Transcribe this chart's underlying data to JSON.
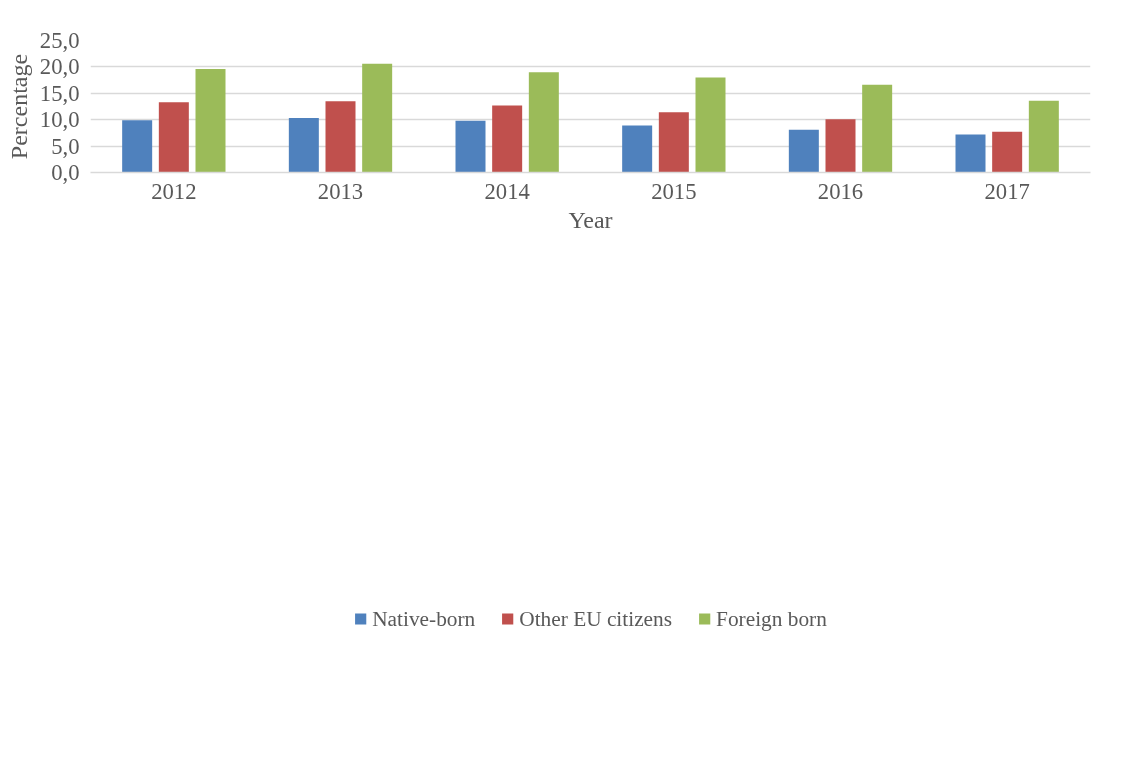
{
  "chart_data": {
    "type": "bar",
    "xlabel": "Year",
    "ylabel": "Percentage",
    "categories": [
      "2012",
      "2013",
      "2014",
      "2015",
      "2016",
      "2017"
    ],
    "series": [
      {
        "name": "Native-born",
        "color": "#4f81bd",
        "values": [
          9.9,
          10.3,
          9.8,
          8.9,
          8.1,
          7.2
        ]
      },
      {
        "name": "Other EU citizens",
        "color": "#c0504d",
        "values": [
          13.3,
          13.5,
          12.7,
          11.4,
          10.1,
          7.7
        ]
      },
      {
        "name": "Foreign born",
        "color": "#9bbb59",
        "values": [
          19.6,
          20.6,
          19.0,
          18.0,
          16.6,
          13.6
        ]
      }
    ],
    "ylim": [
      0,
      25
    ],
    "yticks": [
      {
        "value": 0,
        "label": "0,0"
      },
      {
        "value": 5,
        "label": "5,0"
      },
      {
        "value": 10,
        "label": "10,0"
      },
      {
        "value": 15,
        "label": "15,0"
      },
      {
        "value": 20,
        "label": "20,0"
      },
      {
        "value": 25,
        "label": "25,0"
      }
    ],
    "grid": "y",
    "legend": "bottom"
  }
}
